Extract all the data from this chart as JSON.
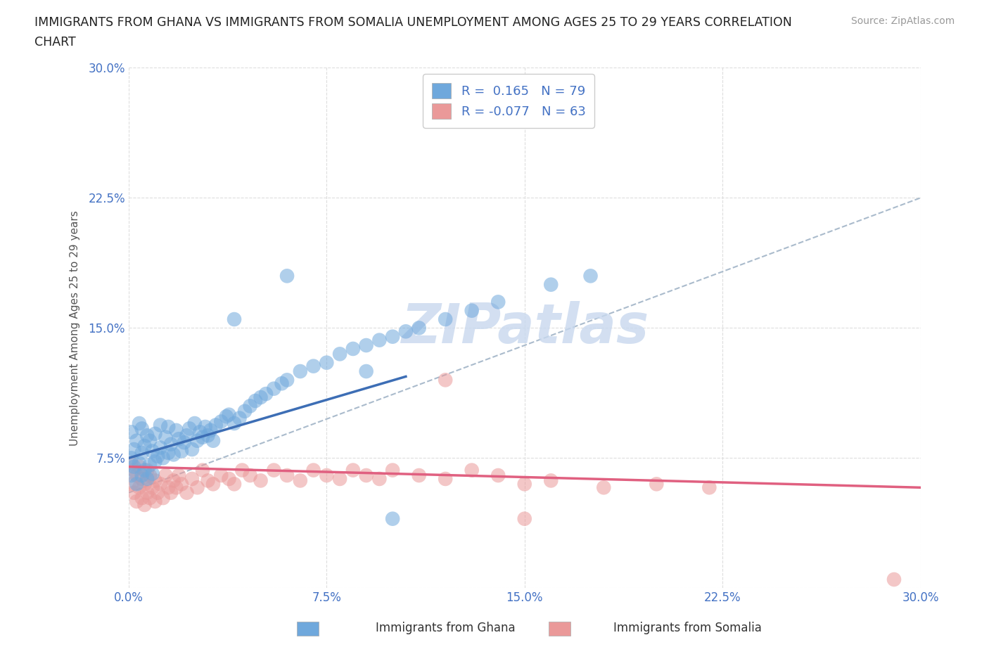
{
  "title_line1": "IMMIGRANTS FROM GHANA VS IMMIGRANTS FROM SOMALIA UNEMPLOYMENT AMONG AGES 25 TO 29 YEARS CORRELATION",
  "title_line2": "CHART",
  "source_text": "Source: ZipAtlas.com",
  "ylabel": "Unemployment Among Ages 25 to 29 years",
  "ghana_color": "#6fa8dc",
  "somalia_color": "#ea9999",
  "ghana_line_color": "#3d6eb5",
  "somalia_line_color": "#e06080",
  "dashed_line_color": "#aabbcc",
  "ghana_R": 0.165,
  "ghana_N": 79,
  "somalia_R": -0.077,
  "somalia_N": 63,
  "watermark_color": "#c8d8ee",
  "tick_color": "#4472c4",
  "xlim": [
    0.0,
    0.3
  ],
  "ylim": [
    0.0,
    0.3
  ],
  "xticks": [
    0.0,
    0.075,
    0.15,
    0.225,
    0.3
  ],
  "yticks": [
    0.0,
    0.075,
    0.15,
    0.225,
    0.3
  ],
  "xticklabels": [
    "0.0%",
    "7.5%",
    "15.0%",
    "22.5%",
    "30.0%"
  ],
  "yticklabels": [
    "",
    "7.5%",
    "15.0%",
    "22.5%",
    "30.0%"
  ],
  "ghana_x": [
    0.001,
    0.001,
    0.001,
    0.002,
    0.002,
    0.003,
    0.003,
    0.004,
    0.004,
    0.005,
    0.005,
    0.005,
    0.006,
    0.006,
    0.007,
    0.007,
    0.008,
    0.008,
    0.009,
    0.009,
    0.01,
    0.01,
    0.011,
    0.012,
    0.012,
    0.013,
    0.014,
    0.015,
    0.015,
    0.016,
    0.017,
    0.018,
    0.019,
    0.02,
    0.021,
    0.022,
    0.023,
    0.024,
    0.025,
    0.026,
    0.027,
    0.028,
    0.029,
    0.03,
    0.031,
    0.032,
    0.033,
    0.035,
    0.037,
    0.038,
    0.04,
    0.042,
    0.044,
    0.046,
    0.048,
    0.05,
    0.052,
    0.055,
    0.058,
    0.06,
    0.065,
    0.07,
    0.075,
    0.08,
    0.085,
    0.09,
    0.095,
    0.1,
    0.105,
    0.11,
    0.12,
    0.13,
    0.14,
    0.16,
    0.175,
    0.06,
    0.04,
    0.09,
    0.1
  ],
  "ghana_y": [
    0.065,
    0.075,
    0.09,
    0.07,
    0.08,
    0.06,
    0.085,
    0.072,
    0.095,
    0.065,
    0.078,
    0.092,
    0.068,
    0.082,
    0.063,
    0.088,
    0.071,
    0.085,
    0.066,
    0.079,
    0.073,
    0.089,
    0.076,
    0.081,
    0.094,
    0.075,
    0.087,
    0.078,
    0.093,
    0.083,
    0.077,
    0.091,
    0.086,
    0.079,
    0.084,
    0.088,
    0.092,
    0.08,
    0.095,
    0.085,
    0.09,
    0.087,
    0.093,
    0.088,
    0.091,
    0.085,
    0.094,
    0.096,
    0.099,
    0.1,
    0.095,
    0.098,
    0.102,
    0.105,
    0.108,
    0.11,
    0.112,
    0.115,
    0.118,
    0.12,
    0.125,
    0.128,
    0.13,
    0.135,
    0.138,
    0.14,
    0.143,
    0.145,
    0.148,
    0.15,
    0.155,
    0.16,
    0.165,
    0.175,
    0.18,
    0.18,
    0.155,
    0.125,
    0.04
  ],
  "somalia_x": [
    0.001,
    0.001,
    0.002,
    0.002,
    0.003,
    0.003,
    0.004,
    0.004,
    0.005,
    0.005,
    0.006,
    0.006,
    0.007,
    0.007,
    0.008,
    0.008,
    0.009,
    0.01,
    0.01,
    0.011,
    0.012,
    0.013,
    0.014,
    0.015,
    0.016,
    0.017,
    0.018,
    0.019,
    0.02,
    0.022,
    0.024,
    0.026,
    0.028,
    0.03,
    0.032,
    0.035,
    0.038,
    0.04,
    0.043,
    0.046,
    0.05,
    0.055,
    0.06,
    0.065,
    0.07,
    0.075,
    0.08,
    0.085,
    0.09,
    0.095,
    0.1,
    0.11,
    0.12,
    0.13,
    0.14,
    0.15,
    0.16,
    0.18,
    0.2,
    0.22,
    0.12,
    0.29,
    0.15
  ],
  "somalia_y": [
    0.06,
    0.072,
    0.055,
    0.068,
    0.05,
    0.065,
    0.058,
    0.07,
    0.052,
    0.063,
    0.048,
    0.06,
    0.055,
    0.068,
    0.052,
    0.065,
    0.058,
    0.05,
    0.062,
    0.055,
    0.06,
    0.052,
    0.065,
    0.058,
    0.055,
    0.062,
    0.058,
    0.065,
    0.06,
    0.055,
    0.063,
    0.058,
    0.068,
    0.062,
    0.06,
    0.065,
    0.063,
    0.06,
    0.068,
    0.065,
    0.062,
    0.068,
    0.065,
    0.062,
    0.068,
    0.065,
    0.063,
    0.068,
    0.065,
    0.063,
    0.068,
    0.065,
    0.063,
    0.068,
    0.065,
    0.06,
    0.062,
    0.058,
    0.06,
    0.058,
    0.12,
    0.005,
    0.04
  ],
  "ghana_line_x0": 0.0,
  "ghana_line_y0": 0.075,
  "ghana_line_x1": 0.105,
  "ghana_line_y1": 0.122,
  "dashed_line_x0": 0.0,
  "dashed_line_y0": 0.055,
  "dashed_line_x1": 0.3,
  "dashed_line_y1": 0.225,
  "somalia_line_x0": 0.0,
  "somalia_line_y0": 0.07,
  "somalia_line_x1": 0.3,
  "somalia_line_y1": 0.058
}
